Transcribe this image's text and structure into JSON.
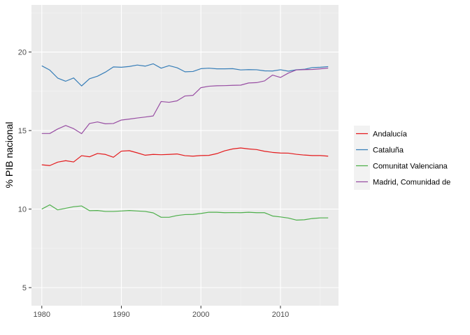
{
  "chart_data": {
    "type": "line",
    "title": "",
    "xlabel": "",
    "ylabel": "% PIB nacional",
    "xlim": [
      1978.7,
      2017.3
    ],
    "ylim": [
      3.85,
      23.0
    ],
    "x_ticks": [
      1980,
      1990,
      2000,
      2010
    ],
    "y_ticks": [
      5,
      10,
      15,
      20
    ],
    "grid": true,
    "legend_position": "right",
    "x": [
      1980,
      1981,
      1982,
      1983,
      1984,
      1985,
      1986,
      1987,
      1988,
      1989,
      1990,
      1991,
      1992,
      1993,
      1994,
      1995,
      1996,
      1997,
      1998,
      1999,
      2000,
      2001,
      2002,
      2003,
      2004,
      2005,
      2006,
      2007,
      2008,
      2009,
      2010,
      2011,
      2012,
      2013,
      2014,
      2015,
      2016
    ],
    "series": [
      {
        "name": "Andalucía",
        "color": "#E41A1C",
        "values": [
          12.82,
          12.77,
          12.99,
          13.08,
          13.0,
          13.4,
          13.33,
          13.54,
          13.48,
          13.3,
          13.69,
          13.72,
          13.58,
          13.43,
          13.48,
          13.46,
          13.48,
          13.51,
          13.4,
          13.37,
          13.41,
          13.42,
          13.53,
          13.71,
          13.83,
          13.89,
          13.83,
          13.79,
          13.68,
          13.61,
          13.57,
          13.56,
          13.49,
          13.44,
          13.41,
          13.41,
          13.37
        ]
      },
      {
        "name": "Cataluña",
        "color": "#377EB8",
        "values": [
          19.12,
          18.85,
          18.34,
          18.14,
          18.35,
          17.84,
          18.3,
          18.46,
          18.72,
          19.05,
          19.03,
          19.08,
          19.17,
          19.1,
          19.25,
          18.97,
          19.13,
          19.0,
          18.74,
          18.76,
          18.94,
          18.97,
          18.93,
          18.93,
          18.94,
          18.86,
          18.88,
          18.87,
          18.8,
          18.79,
          18.87,
          18.78,
          18.87,
          18.9,
          19.01,
          19.03,
          19.07
        ]
      },
      {
        "name": "Comunitat Valenciana",
        "color": "#4DAF4A",
        "values": [
          10.0,
          10.27,
          9.95,
          10.05,
          10.15,
          10.2,
          9.9,
          9.91,
          9.85,
          9.85,
          9.88,
          9.91,
          9.88,
          9.85,
          9.76,
          9.48,
          9.48,
          9.59,
          9.65,
          9.66,
          9.72,
          9.8,
          9.8,
          9.77,
          9.78,
          9.77,
          9.8,
          9.77,
          9.77,
          9.56,
          9.5,
          9.43,
          9.3,
          9.32,
          9.4,
          9.44,
          9.44
        ]
      },
      {
        "name": "Madrid, Comunidad de",
        "color": "#984EA3",
        "values": [
          14.81,
          14.81,
          15.1,
          15.32,
          15.12,
          14.8,
          15.45,
          15.55,
          15.43,
          15.45,
          15.67,
          15.73,
          15.8,
          15.86,
          15.93,
          16.85,
          16.8,
          16.89,
          17.2,
          17.24,
          17.73,
          17.82,
          17.85,
          17.86,
          17.88,
          17.89,
          18.03,
          18.05,
          18.16,
          18.53,
          18.38,
          18.66,
          18.86,
          18.88,
          18.89,
          18.93,
          18.98
        ]
      }
    ]
  }
}
